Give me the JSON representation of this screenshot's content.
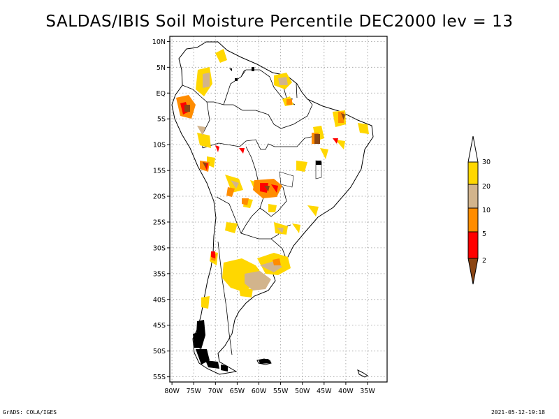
{
  "title": "SALDAS/IBIS Soil Moisture Percentile DEC2000 lev = 13",
  "footer": {
    "left": "GrADS: COLA/IGES",
    "right": "2021-05-12-19:18"
  },
  "map": {
    "lon_range": [
      -80.5,
      -30.5
    ],
    "lat_range": [
      -56,
      11
    ],
    "lat_ticks": [
      {
        "value": 10,
        "label": "10N"
      },
      {
        "value": 5,
        "label": "5N"
      },
      {
        "value": 0,
        "label": "EQ"
      },
      {
        "value": -5,
        "label": "5S"
      },
      {
        "value": -10,
        "label": "10S"
      },
      {
        "value": -15,
        "label": "15S"
      },
      {
        "value": -20,
        "label": "20S"
      },
      {
        "value": -25,
        "label": "25S"
      },
      {
        "value": -30,
        "label": "30S"
      },
      {
        "value": -35,
        "label": "35S"
      },
      {
        "value": -40,
        "label": "40S"
      },
      {
        "value": -45,
        "label": "45S"
      },
      {
        "value": -50,
        "label": "50S"
      },
      {
        "value": -55,
        "label": "55S"
      }
    ],
    "lon_ticks": [
      {
        "value": -80,
        "label": "80W"
      },
      {
        "value": -75,
        "label": "75W"
      },
      {
        "value": -70,
        "label": "70W"
      },
      {
        "value": -65,
        "label": "65W"
      },
      {
        "value": -60,
        "label": "60W"
      },
      {
        "value": -55,
        "label": "55W"
      },
      {
        "value": -50,
        "label": "50W"
      },
      {
        "value": -45,
        "label": "45W"
      },
      {
        "value": -40,
        "label": "40W"
      },
      {
        "value": -35,
        "label": "35W"
      }
    ]
  },
  "legend": {
    "labels": [
      "2",
      "5",
      "10",
      "20",
      "30"
    ],
    "colors": [
      "#8b4513",
      "#ff0000",
      "#ff8c00",
      "#d2b48c",
      "#ffd700",
      "#ffffff"
    ]
  },
  "colors": {
    "brown": "#8b4513",
    "red": "#ff0000",
    "orange": "#ff8c00",
    "tan": "#d2b48c",
    "gold": "#ffd700"
  }
}
